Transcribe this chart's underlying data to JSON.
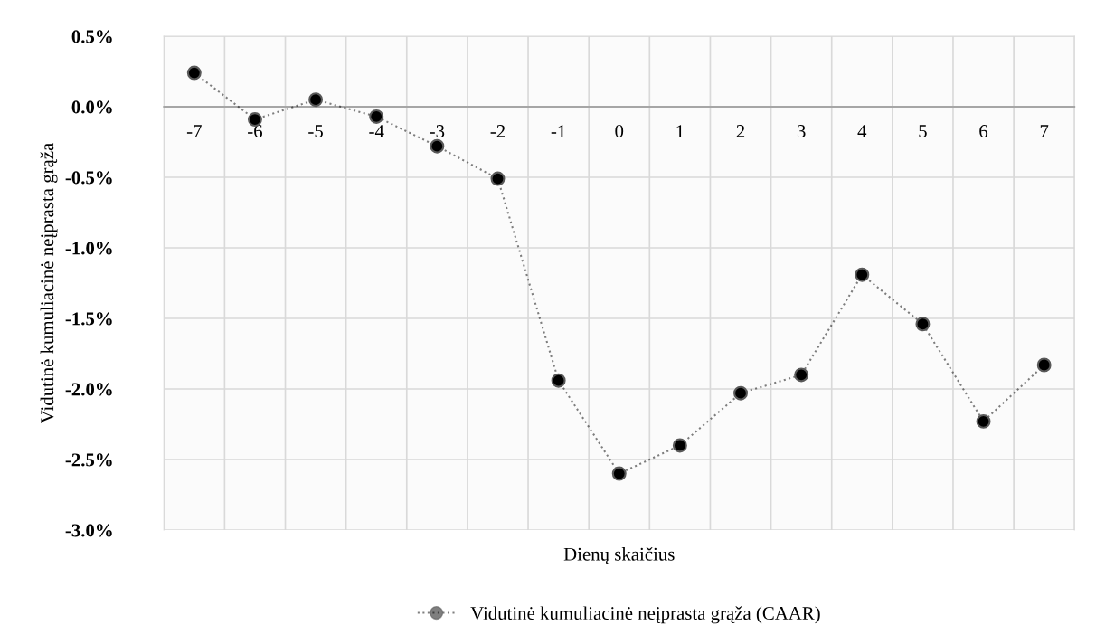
{
  "chart_data": {
    "type": "line",
    "xlabel": "Dienų skaičius",
    "ylabel": "Vidutinė kumuliacinė neįprasta grąža",
    "categories": [
      "-7",
      "-6",
      "-5",
      "-4",
      "-3",
      "-2",
      "-1",
      "0",
      "1",
      "2",
      "3",
      "4",
      "5",
      "6",
      "7"
    ],
    "series": [
      {
        "name": "Vidutinė kumuliacinė neįprasta grąža (CAAR)",
        "color": "#000000",
        "values": [
          0.24,
          -0.09,
          0.05,
          -0.07,
          -0.28,
          -0.51,
          -1.94,
          -2.6,
          -2.4,
          -2.03,
          -1.9,
          -1.19,
          -1.54,
          -2.23,
          -1.83
        ]
      }
    ],
    "ylim": [
      -3.0,
      0.5
    ],
    "yticks": [
      {
        "value": 0.5,
        "label": "0.5%"
      },
      {
        "value": 0.0,
        "label": "0.0%"
      },
      {
        "value": -0.5,
        "label": "-0.5%"
      },
      {
        "value": -1.0,
        "label": "-1.0%"
      },
      {
        "value": -1.5,
        "label": "-1.5%"
      },
      {
        "value": -2.0,
        "label": "-2.0%"
      },
      {
        "value": -2.5,
        "label": "-2.5%"
      },
      {
        "value": -3.0,
        "label": "-3.0%"
      }
    ],
    "grid": true,
    "legend": "bottom",
    "marker": "circle",
    "line_style": "dotted"
  }
}
